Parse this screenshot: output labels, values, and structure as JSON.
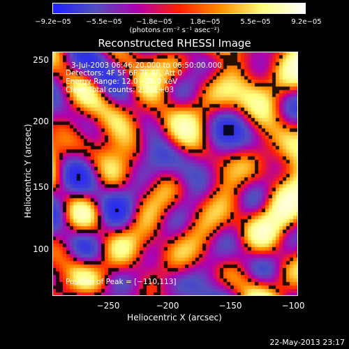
{
  "colorbar": {
    "ticks": [
      "−9.2e−05",
      "−5.5e−05",
      "−1.8e−05",
      "1.8e−05",
      "5.5e−05",
      "9.2e−05"
    ],
    "units": "(photons cm⁻² s⁻¹ asec⁻²)",
    "colors": [
      "#2020ff",
      "#5050c0",
      "#b000b0",
      "#ff2000",
      "#ff9000",
      "#ffff80",
      "#ffffff"
    ]
  },
  "title": "Reconstructed RHESSI Image",
  "annotations": {
    "time": "3-Jul-2003 06:46:20.000 to 06:50:00.000",
    "detectors": "Detectors: 4F 5F 6F 7F 8F, Att 0",
    "energy": "Energy Range: 12.0 - 25.0 keV",
    "clean": "Clean    Total counts: 2.31E+03",
    "peak": "Position of Peak = [−110,113]"
  },
  "axes": {
    "x_label": "Heliocentric X (arcsec)",
    "y_label": "Heliocentric Y (arcsec)",
    "x_ticks": [
      "−250",
      "−200",
      "−150",
      "−100"
    ],
    "y_ticks": [
      "250",
      "200",
      "150",
      "100"
    ]
  },
  "datestamp": "22-May-2013 23:17"
}
